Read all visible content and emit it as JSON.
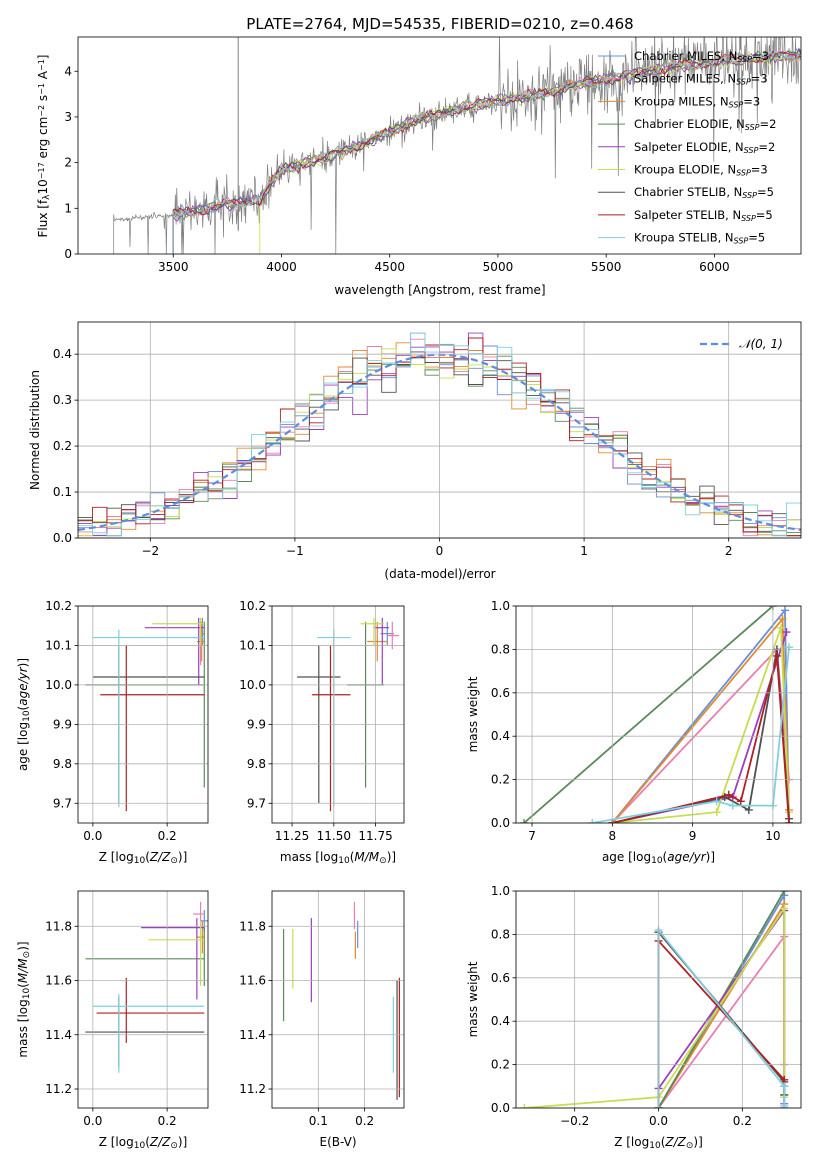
{
  "figure": {
    "title": "PLATE=2764, MJD=54535, FIBERID=0210, z=0.468"
  },
  "colors": {
    "Chabrier MILES": "#6a8fd8",
    "Salpeter MILES": "#e87fb0",
    "Kroupa MILES": "#e08a2e",
    "Chabrier ELODIE": "#5a8a5a",
    "Salpeter ELODIE": "#9a3fbf",
    "Kroupa ELODIE": "#c8dc50",
    "Chabrier STELIB": "#505050",
    "Salpeter STELIB": "#b02020",
    "Kroupa STELIB": "#7fd0e0",
    "normal": "#5b8ede",
    "spectrum": "#808080"
  },
  "chart_data": [
    {
      "id": "spectrum",
      "type": "line",
      "xlabel": "wavelength [Angstrom, rest frame]",
      "ylabel": "Flux [f_λ 10^-17 erg cm^-2 s^-1 A^-1]",
      "xlim": [
        3060,
        6400
      ],
      "ylim": [
        0,
        4.75
      ],
      "xticks": [
        3500,
        4000,
        4500,
        5000,
        5500,
        6000
      ],
      "yticks": [
        0,
        1,
        2,
        3,
        4
      ],
      "grid": false,
      "legend_position": "top-right",
      "legend": [
        {
          "series": "Chabrier MILES",
          "label": "Chabrier MILES, N",
          "sub": "SSP",
          "tail": "=3"
        },
        {
          "series": "Salpeter MILES",
          "label": "Salpeter MILES, N",
          "sub": "SSP",
          "tail": "=3"
        },
        {
          "series": "Kroupa MILES",
          "label": "Kroupa MILES, N",
          "sub": "SSP",
          "tail": "=3"
        },
        {
          "series": "Chabrier ELODIE",
          "label": "Chabrier ELODIE, N",
          "sub": "SSP",
          "tail": "=2"
        },
        {
          "series": "Salpeter ELODIE",
          "label": "Salpeter ELODIE, N",
          "sub": "SSP",
          "tail": "=2"
        },
        {
          "series": "Kroupa ELODIE",
          "label": "Kroupa ELODIE, N",
          "sub": "SSP",
          "tail": "=3"
        },
        {
          "series": "Chabrier STELIB",
          "label": "Chabrier STELIB, N",
          "sub": "SSP",
          "tail": "=5"
        },
        {
          "series": "Salpeter STELIB",
          "label": "Salpeter STELIB, N",
          "sub": "SSP",
          "tail": "=5"
        },
        {
          "series": "Kroupa STELIB",
          "label": "Kroupa STELIB, N",
          "sub": "SSP",
          "tail": "=5"
        }
      ],
      "data_start": 3225,
      "model_anchor_x": [
        3225,
        3400,
        3500,
        3700,
        3900,
        4000,
        4200,
        4400,
        4600,
        4800,
        5000,
        5200,
        5400,
        5600,
        5800,
        6000,
        6200,
        6400
      ],
      "model_anchor_y": [
        0.75,
        0.82,
        0.85,
        1.05,
        1.2,
        1.85,
        2.1,
        2.45,
        2.9,
        3.15,
        3.35,
        3.5,
        3.75,
        3.9,
        4.1,
        4.2,
        4.3,
        4.35
      ]
    },
    {
      "id": "residuals",
      "type": "line",
      "xlabel": "(data-model)/error",
      "ylabel": "Normed distribution",
      "xlim": [
        -2.5,
        2.5
      ],
      "ylim": [
        0,
        0.47
      ],
      "xticks": [
        -2,
        -1,
        0,
        1,
        2
      ],
      "yticks": [
        0.0,
        0.1,
        0.2,
        0.3,
        0.4
      ],
      "grid": true,
      "legend_position": "top-right",
      "legend": [
        {
          "series": "normal",
          "label": "𝒩(0, 1)"
        }
      ]
    },
    {
      "id": "age_vs_Z",
      "type": "scatter",
      "xlabel": "Z [log10(Z/Z⊙)]",
      "ylabel": "age  [log10(age/yr)]",
      "xlim": [
        -0.04,
        0.31
      ],
      "ylim": [
        9.65,
        10.2
      ],
      "xticks": [
        0.0,
        0.2
      ],
      "yticks": [
        9.7,
        9.8,
        9.9,
        10.0,
        10.1,
        10.2
      ],
      "grid": true,
      "points": [
        {
          "series": "Chabrier MILES",
          "x": 0.295,
          "y": 10.13,
          "x_lo": 0.29,
          "x_hi": 0.3,
          "y_lo": 10.1,
          "y_hi": 10.17
        },
        {
          "series": "Salpeter MILES",
          "x": 0.29,
          "y": 10.12,
          "x_lo": 0.27,
          "x_hi": 0.3,
          "y_lo": 10.05,
          "y_hi": 10.16
        },
        {
          "series": "Kroupa MILES",
          "x": 0.293,
          "y": 10.11,
          "x_lo": 0.28,
          "x_hi": 0.3,
          "y_lo": 10.06,
          "y_hi": 10.16
        },
        {
          "series": "Chabrier ELODIE",
          "x": 0.3,
          "y": 10.0,
          "x_lo": -0.02,
          "x_hi": 0.3,
          "y_lo": 9.74,
          "y_hi": 10.16
        },
        {
          "series": "Salpeter ELODIE",
          "x": 0.285,
          "y": 10.145,
          "x_lo": 0.14,
          "x_hi": 0.3,
          "y_lo": 10.0,
          "y_hi": 10.17
        },
        {
          "series": "Kroupa ELODIE",
          "x": 0.29,
          "y": 10.155,
          "x_lo": 0.16,
          "x_hi": 0.3,
          "y_lo": 10.1,
          "y_hi": 10.17
        },
        {
          "series": "Chabrier STELIB",
          "x": 0.07,
          "y": 10.02,
          "x_lo": 0.0,
          "x_hi": 0.3,
          "y_lo": 9.7,
          "y_hi": 10.1
        },
        {
          "series": "Salpeter STELIB",
          "x": 0.09,
          "y": 9.975,
          "x_lo": 0.02,
          "x_hi": 0.3,
          "y_lo": 9.68,
          "y_hi": 10.1
        },
        {
          "series": "Kroupa STELIB",
          "x": 0.07,
          "y": 10.12,
          "x_lo": 0.0,
          "x_hi": 0.3,
          "y_lo": 9.69,
          "y_hi": 10.14
        }
      ]
    },
    {
      "id": "age_vs_mass",
      "type": "scatter",
      "xlabel": "mass [log10(M/M⊙)]",
      "ylabel": "",
      "xlim": [
        11.13,
        11.92
      ],
      "ylim": [
        9.65,
        10.2
      ],
      "xticks": [
        11.25,
        11.5,
        11.75
      ],
      "yticks": [
        9.7,
        9.8,
        9.9,
        10.0,
        10.1,
        10.2
      ],
      "grid": true,
      "points": [
        {
          "series": "Chabrier MILES",
          "x": 11.82,
          "y": 10.13,
          "x_lo": 11.78,
          "x_hi": 11.86,
          "y_lo": 10.1,
          "y_hi": 10.16
        },
        {
          "series": "Salpeter MILES",
          "x": 11.85,
          "y": 10.125,
          "x_lo": 11.82,
          "x_hi": 11.89,
          "y_lo": 10.09,
          "y_hi": 10.16
        },
        {
          "series": "Kroupa MILES",
          "x": 11.76,
          "y": 10.11,
          "x_lo": 11.7,
          "x_hi": 11.82,
          "y_lo": 10.06,
          "y_hi": 10.16
        },
        {
          "series": "Chabrier ELODIE",
          "x": 11.69,
          "y": 10.0,
          "x_lo": 11.58,
          "x_hi": 11.8,
          "y_lo": 9.74,
          "y_hi": 10.16
        },
        {
          "series": "Salpeter ELODIE",
          "x": 11.79,
          "y": 10.145,
          "x_lo": 11.74,
          "x_hi": 11.83,
          "y_lo": 10.0,
          "y_hi": 10.17
        },
        {
          "series": "Kroupa ELODIE",
          "x": 11.74,
          "y": 10.155,
          "x_lo": 11.66,
          "x_hi": 11.8,
          "y_lo": 10.1,
          "y_hi": 10.17
        },
        {
          "series": "Chabrier STELIB",
          "x": 11.41,
          "y": 10.02,
          "x_lo": 11.28,
          "x_hi": 11.54,
          "y_lo": 9.7,
          "y_hi": 10.1
        },
        {
          "series": "Salpeter STELIB",
          "x": 11.48,
          "y": 9.975,
          "x_lo": 11.37,
          "x_hi": 11.6,
          "y_lo": 9.68,
          "y_hi": 10.1
        },
        {
          "series": "Kroupa STELIB",
          "x": 11.5,
          "y": 10.12,
          "x_lo": 11.4,
          "x_hi": 11.6,
          "y_lo": 9.69,
          "y_hi": 10.14
        }
      ]
    },
    {
      "id": "mass_weight_vs_age",
      "type": "line",
      "xlabel": "age  [log10(age/yr)]",
      "ylabel": "mass weight",
      "xlim": [
        6.8,
        10.35
      ],
      "ylim": [
        0,
        1.0
      ],
      "xticks": [
        7,
        8,
        9,
        10
      ],
      "yticks": [
        0.0,
        0.2,
        0.4,
        0.6,
        0.8,
        1.0
      ],
      "grid": true,
      "series": [
        {
          "name": "Chabrier MILES",
          "x": [
            8.0,
            10.15,
            10.2
          ],
          "y": [
            0.0,
            0.98,
            0.0
          ]
        },
        {
          "name": "Salpeter MILES",
          "x": [
            8.0,
            10.05,
            10.2
          ],
          "y": [
            0.0,
            0.8,
            0.2
          ]
        },
        {
          "name": "Kroupa MILES",
          "x": [
            8.0,
            10.12,
            10.2
          ],
          "y": [
            0.0,
            0.94,
            0.06
          ]
        },
        {
          "name": "Chabrier ELODIE",
          "x": [
            6.9,
            10.0
          ],
          "y": [
            0.0,
            1.0
          ]
        },
        {
          "name": "Salpeter ELODIE",
          "x": [
            8.0,
            9.5,
            10.17
          ],
          "y": [
            0.0,
            0.12,
            0.88
          ]
        },
        {
          "name": "Kroupa ELODIE",
          "x": [
            8.0,
            9.3,
            10.1,
            10.2
          ],
          "y": [
            0.0,
            0.05,
            0.9,
            0.05
          ]
        },
        {
          "name": "Chabrier STELIB",
          "x": [
            8.0,
            9.4,
            9.7,
            10.05,
            10.2
          ],
          "y": [
            0.0,
            0.12,
            0.06,
            0.8,
            0.02
          ]
        },
        {
          "name": "Salpeter STELIB",
          "x": [
            8.0,
            9.45,
            9.6,
            10.05,
            10.2
          ],
          "y": [
            0.0,
            0.13,
            0.1,
            0.77,
            0.0
          ]
        },
        {
          "name": "Kroupa STELIB",
          "x": [
            7.75,
            9.3,
            9.5,
            10.0,
            10.2
          ],
          "y": [
            0.0,
            0.1,
            0.08,
            0.08,
            0.81
          ]
        }
      ]
    },
    {
      "id": "mass_vs_Z",
      "type": "scatter",
      "xlabel": "Z [log10(Z/Z⊙)]",
      "ylabel": "mass [log10(M/M⊙)]",
      "xlim": [
        -0.04,
        0.31
      ],
      "ylim": [
        11.13,
        11.93
      ],
      "xticks": [
        0.0,
        0.2
      ],
      "yticks": [
        11.2,
        11.4,
        11.6,
        11.8
      ],
      "grid": true,
      "points": [
        {
          "series": "Chabrier MILES",
          "x": 0.3,
          "y": 11.82,
          "x_lo": 0.29,
          "x_hi": 0.31,
          "y_lo": 11.78,
          "y_hi": 11.86
        },
        {
          "series": "Salpeter MILES",
          "x": 0.29,
          "y": 11.845,
          "x_lo": 0.27,
          "x_hi": 0.3,
          "y_lo": 11.8,
          "y_hi": 11.89
        },
        {
          "series": "Kroupa MILES",
          "x": 0.295,
          "y": 11.76,
          "x_lo": 0.28,
          "x_hi": 0.3,
          "y_lo": 11.7,
          "y_hi": 11.82
        },
        {
          "series": "Chabrier ELODIE",
          "x": 0.3,
          "y": 11.68,
          "x_lo": -0.02,
          "x_hi": 0.3,
          "y_lo": 11.58,
          "y_hi": 11.8
        },
        {
          "series": "Salpeter ELODIE",
          "x": 0.28,
          "y": 11.795,
          "x_lo": 0.13,
          "x_hi": 0.3,
          "y_lo": 11.53,
          "y_hi": 11.83
        },
        {
          "series": "Kroupa ELODIE",
          "x": 0.29,
          "y": 11.75,
          "x_lo": 0.15,
          "x_hi": 0.3,
          "y_lo": 11.58,
          "y_hi": 11.82
        },
        {
          "series": "Chabrier STELIB",
          "x": 0.07,
          "y": 11.41,
          "x_lo": -0.02,
          "x_hi": 0.3,
          "y_lo": 11.28,
          "y_hi": 11.54
        },
        {
          "series": "Salpeter STELIB",
          "x": 0.09,
          "y": 11.48,
          "x_lo": 0.01,
          "x_hi": 0.3,
          "y_lo": 11.37,
          "y_hi": 11.61
        },
        {
          "series": "Kroupa STELIB",
          "x": 0.07,
          "y": 11.505,
          "x_lo": 0.0,
          "x_hi": 0.3,
          "y_lo": 11.26,
          "y_hi": 11.55
        }
      ]
    },
    {
      "id": "mass_vs_ebv",
      "type": "scatter",
      "xlabel": "E(B-V)",
      "ylabel": "",
      "xlim": [
        0.0,
        0.285
      ],
      "ylim": [
        11.13,
        11.93
      ],
      "xticks": [
        0.1,
        0.2
      ],
      "yticks": [
        11.2,
        11.4,
        11.6,
        11.8
      ],
      "grid": true,
      "points": [
        {
          "series": "Chabrier MILES",
          "x": 0.185,
          "y": 11.77,
          "y_lo": 11.72,
          "y_hi": 11.82
        },
        {
          "series": "Salpeter MILES",
          "x": 0.178,
          "y": 11.84,
          "y_lo": 11.79,
          "y_hi": 11.89
        },
        {
          "series": "Kroupa MILES",
          "x": 0.18,
          "y": 11.73,
          "y_lo": 11.68,
          "y_hi": 11.78
        },
        {
          "series": "Chabrier ELODIE",
          "x": 0.025,
          "y": 11.62,
          "y_lo": 11.45,
          "y_hi": 11.79
        },
        {
          "series": "Salpeter ELODIE",
          "x": 0.085,
          "y": 11.7,
          "y_lo": 11.52,
          "y_hi": 11.83
        },
        {
          "series": "Kroupa ELODIE",
          "x": 0.045,
          "y": 11.68,
          "y_lo": 11.57,
          "y_hi": 11.79
        },
        {
          "series": "Chabrier STELIB",
          "x": 0.27,
          "y": 11.38,
          "y_lo": 11.16,
          "y_hi": 11.6
        },
        {
          "series": "Salpeter STELIB",
          "x": 0.275,
          "y": 11.39,
          "y_lo": 11.17,
          "y_hi": 11.61
        },
        {
          "series": "Kroupa STELIB",
          "x": 0.262,
          "y": 11.4,
          "y_lo": 11.26,
          "y_hi": 11.54
        }
      ]
    },
    {
      "id": "mass_weight_vs_Z",
      "type": "line",
      "xlabel": "Z [log10(Z/Z⊙)]",
      "ylabel": "mass weight",
      "xlim": [
        -0.34,
        0.34
      ],
      "ylim": [
        0,
        1.0
      ],
      "xticks": [
        -0.2,
        0.0,
        0.2
      ],
      "yticks": [
        0.0,
        0.2,
        0.4,
        0.6,
        0.8,
        1.0
      ],
      "grid": true,
      "series": [
        {
          "name": "Chabrier MILES",
          "x": [
            0.0,
            0.3,
            0.3
          ],
          "y": [
            0.0,
            0.98,
            0.02
          ]
        },
        {
          "name": "Salpeter MILES",
          "x": [
            0.0,
            0.3,
            0.3
          ],
          "y": [
            0.0,
            0.79,
            0.2
          ]
        },
        {
          "name": "Kroupa MILES",
          "x": [
            0.0,
            0.3,
            0.3
          ],
          "y": [
            0.0,
            0.94,
            0.06
          ]
        },
        {
          "name": "Chabrier ELODIE",
          "x": [
            0.0,
            0.3
          ],
          "y": [
            0.0,
            1.0
          ]
        },
        {
          "name": "Salpeter ELODIE",
          "x": [
            0.0,
            0.0,
            0.3,
            0.3
          ],
          "y": [
            0.0,
            0.09,
            0.91,
            0.0
          ]
        },
        {
          "name": "Kroupa ELODIE",
          "x": [
            -0.32,
            0.0,
            0.3,
            0.3
          ],
          "y": [
            0.0,
            0.05,
            0.92,
            0.05
          ]
        },
        {
          "name": "Chabrier STELIB",
          "x": [
            0.0,
            0.0,
            0.3,
            0.3
          ],
          "y": [
            0.0,
            0.81,
            0.12,
            0.06
          ]
        },
        {
          "name": "Salpeter STELIB",
          "x": [
            0.0,
            0.0,
            0.3,
            0.3
          ],
          "y": [
            0.0,
            0.77,
            0.13,
            0.1
          ]
        },
        {
          "name": "Kroupa STELIB",
          "x": [
            0.0,
            0.0,
            0.3,
            0.3
          ],
          "y": [
            0.0,
            0.82,
            0.1,
            0.01
          ]
        }
      ]
    }
  ]
}
